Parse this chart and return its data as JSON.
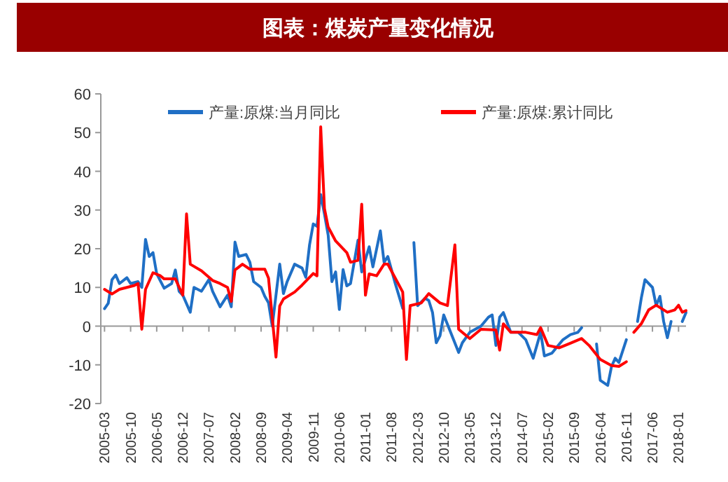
{
  "chart_data": {
    "type": "line",
    "title": "图表：煤炭产量变化情况",
    "xlim": [
      "2005-02",
      "2018-03"
    ],
    "ylim": [
      -20,
      60
    ],
    "yticks": [
      -20,
      -10,
      0,
      10,
      20,
      30,
      40,
      50,
      60
    ],
    "xticks": [
      "2005-03",
      "2005-10",
      "2006-05",
      "2006-12",
      "2007-07",
      "2008-02",
      "2008-09",
      "2009-04",
      "2009-11",
      "2010-06",
      "2011-01",
      "2011-08",
      "2012-03",
      "2012-10",
      "2013-05",
      "2013-12",
      "2014-07",
      "2015-02",
      "2015-09",
      "2016-04",
      "2016-11",
      "2017-06",
      "2018-01"
    ],
    "legend": "top",
    "series": [
      {
        "name": "产量:原煤:当月同比",
        "color": "#1f6fc5",
        "x": [
          "2005-03",
          "2005-04",
          "2005-05",
          "2005-06",
          "2005-07",
          "2005-09",
          "2005-10",
          "2005-12",
          "2006-01",
          "2006-02",
          "2006-03",
          "2006-04",
          "2006-05",
          "2006-07",
          "2006-09",
          "2006-10",
          "2006-11",
          "2006-12",
          "2007-02",
          "2007-03",
          "2007-05",
          "2007-07",
          "2007-08",
          "2007-10",
          "2007-12",
          "2008-01",
          "2008-02",
          "2008-03",
          "2008-05",
          "2008-06",
          "2008-07",
          "2008-09",
          "2008-10",
          "2008-11",
          "2008-12",
          "2009-02",
          "2009-03",
          "2009-04",
          "2009-06",
          "2009-08",
          "2009-09",
          "2009-10",
          "2009-11",
          "2009-12",
          "2010-01",
          "2010-02",
          "2010-03",
          "2010-04",
          "2010-05",
          "2010-06",
          "2010-07",
          "2010-08",
          "2010-09",
          "2010-11",
          "2010-12",
          "2011-02",
          "2011-03",
          "2011-05",
          "2011-06",
          "2011-07",
          "2011-09",
          "2011-11",
          "2012-01",
          "2012-02",
          "2012-03",
          "2012-05",
          "2012-06",
          "2012-07",
          "2012-08",
          "2012-09",
          "2012-10",
          "2013-02",
          "2013-03",
          "2013-05",
          "2013-08",
          "2013-10",
          "2013-11",
          "2013-12",
          "2014-01",
          "2014-02",
          "2014-04",
          "2014-06",
          "2014-08",
          "2014-10",
          "2014-12",
          "2015-01",
          "2015-03",
          "2015-06",
          "2015-08",
          "2015-10",
          "2015-11",
          "2016-01",
          "2016-03",
          "2016-04",
          "2016-06",
          "2016-07",
          "2016-08",
          "2016-09",
          "2016-11",
          "2016-12",
          "2017-02",
          "2017-03",
          "2017-04",
          "2017-06",
          "2017-07",
          "2017-08",
          "2017-09",
          "2017-10",
          "2017-11",
          "2017-12",
          "2018-02",
          "2018-03"
        ],
        "values": [
          4.5,
          5.9,
          12,
          13.2,
          11,
          12.5,
          11,
          11.5,
          10,
          22.4,
          18,
          19,
          13.5,
          9.8,
          11,
          14.5,
          9,
          8,
          3.6,
          10,
          9,
          12,
          9,
          5,
          8,
          5,
          21.7,
          18,
          18.5,
          16.5,
          11.5,
          10,
          7.7,
          6,
          0,
          16,
          8.4,
          11.5,
          16,
          15,
          12.6,
          21,
          26.4,
          25.8,
          34,
          29,
          23.5,
          11.5,
          14,
          4.3,
          14.6,
          10.4,
          11,
          22.2,
          14,
          20.5,
          15.3,
          24.6,
          16.5,
          18,
          11,
          4.6,
          null,
          21.6,
          5.3,
          7.2,
          6.6,
          3.5,
          -4.3,
          -2.5,
          2.9,
          -6.8,
          -4.3,
          -1.6,
          0,
          2.3,
          2.9,
          -5,
          2.3,
          3.5,
          -1.6,
          -1.6,
          -3.5,
          -8.3,
          -1.6,
          -7.7,
          -7,
          -3.5,
          -2.2,
          -1.6,
          -0.4,
          null,
          -4.6,
          -14,
          -15.3,
          -10.5,
          -8.3,
          -9.4,
          -3.5,
          null,
          1.2,
          7.2,
          12,
          10,
          5.3,
          7.7,
          1.2,
          -3,
          1.2,
          null,
          1.2,
          3.5
        ]
      },
      {
        "name": "产量:原煤:累计同比",
        "color": "#ff0000",
        "x": [
          "2005-03",
          "2005-05",
          "2005-07",
          "2005-11",
          "2005-12",
          "2006-01",
          "2006-02",
          "2006-04",
          "2006-06",
          "2006-07",
          "2006-10",
          "2006-12",
          "2007-01",
          "2007-02",
          "2007-05",
          "2007-08",
          "2007-10",
          "2007-12",
          "2008-01",
          "2008-02",
          "2008-04",
          "2008-06",
          "2008-10",
          "2008-11",
          "2009-01",
          "2009-02",
          "2009-03",
          "2009-06",
          "2009-08",
          "2009-11",
          "2009-12",
          "2010-01",
          "2010-02",
          "2010-03",
          "2010-05",
          "2010-08",
          "2010-09",
          "2010-11",
          "2010-12",
          "2011-01",
          "2011-02",
          "2011-04",
          "2011-06",
          "2011-07",
          "2011-09",
          "2011-11",
          "2011-12",
          "2012-01",
          "2012-04",
          "2012-06",
          "2012-09",
          "2012-11",
          "2013-01",
          "2013-02",
          "2013-05",
          "2013-08",
          "2013-12",
          "2014-01",
          "2014-02",
          "2014-04",
          "2014-08",
          "2014-11",
          "2014-12",
          "2015-02",
          "2015-05",
          "2015-08",
          "2015-11",
          "2016-01",
          "2016-04",
          "2016-07",
          "2016-09",
          "2016-11",
          "2016-12",
          "2017-01",
          "2017-03",
          "2017-05",
          "2017-07",
          "2017-10",
          "2017-12",
          "2018-01",
          "2018-02",
          "2018-03"
        ],
        "values": [
          9.5,
          8.3,
          9.5,
          10.5,
          11,
          -0.8,
          9.5,
          13.8,
          13,
          12.2,
          12.2,
          8,
          29,
          16,
          14.3,
          11.8,
          11,
          10,
          6.4,
          14.5,
          16,
          14.7,
          14.7,
          12.4,
          -8,
          5.2,
          7,
          8.8,
          10.6,
          13.6,
          13,
          51.5,
          30.4,
          25.6,
          22,
          19,
          16.5,
          17,
          31.5,
          8,
          13.5,
          13,
          16,
          16,
          12.4,
          8.8,
          -8.6,
          5.3,
          6,
          8.4,
          6,
          5.3,
          21,
          -0.8,
          -3.2,
          -0.8,
          -1,
          -6.2,
          0.6,
          -1.6,
          -1.6,
          -2.2,
          -0.4,
          -5,
          -5.6,
          -4.4,
          -3.2,
          -5,
          -8.6,
          -10.2,
          -10.4,
          -9.2,
          null,
          -1.6,
          0.6,
          4.2,
          5.4,
          3.6,
          4.2,
          5.4,
          3.6,
          4
        ]
      }
    ]
  }
}
